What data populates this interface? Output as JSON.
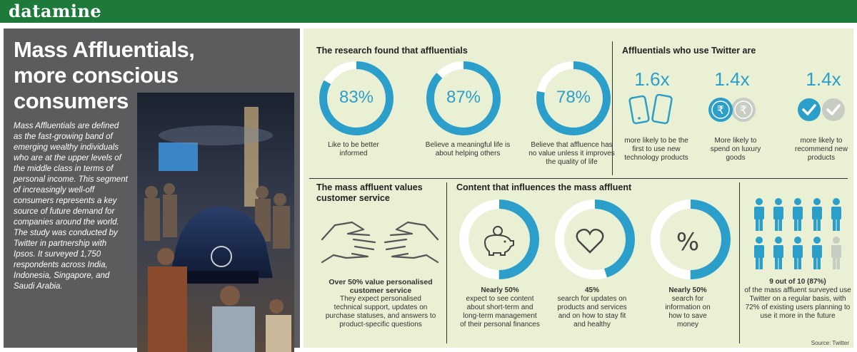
{
  "header": {
    "section_name": "datamine"
  },
  "left": {
    "title_line1": "Mass Affluentials,",
    "title_line2": "more conscious consumers",
    "description": "Mass Affluentials are defined as the fast-growing band of emerging wealthy individuals who are at the upper levels of the middle class in terms of personal income. This segment of increasingly well-off consumers represents a key source of future demand for companies around the world. The study was conducted by Twitter in partnership with Ipsos. It surveyed 1,750 respondents across India, Indonesia, Singapore, and Saudi Arabia."
  },
  "research": {
    "title": "The research found that affluentials",
    "items": [
      {
        "value": "83%",
        "fraction": 0.83,
        "caption_line1": "Like to be better",
        "caption_line2": "informed",
        "caption_line3": ""
      },
      {
        "value": "87%",
        "fraction": 0.87,
        "caption_line1": "Believe a meaningful life is",
        "caption_line2": "about helping others",
        "caption_line3": ""
      },
      {
        "value": "78%",
        "fraction": 0.78,
        "caption_line1": "Believe that affluence has",
        "caption_line2": "no value unless it improves",
        "caption_line3": "the quality of life"
      }
    ],
    "ring_color": "#2b9fca",
    "ring_track_color": "#ffffff"
  },
  "twitter": {
    "title": "Affluentials who use Twitter are",
    "items": [
      {
        "value": "1.6x",
        "icon": "smartphone-icon",
        "caption_line1": "more likely to be the",
        "caption_line2": "first to use new",
        "caption_line3": "technology products"
      },
      {
        "value": "1.4x",
        "icon": "rupee-coin-icon",
        "caption_line1": "More likely to",
        "caption_line2": "spend on luxury",
        "caption_line3": "goods"
      },
      {
        "value": "1.4x",
        "icon": "checkmark-icon",
        "caption_line1": "more likely to",
        "caption_line2": "recommend new",
        "caption_line3": "products"
      }
    ]
  },
  "service": {
    "title_line1": "The mass affluent values",
    "title_line2": "customer service",
    "icon": "hands-icon",
    "highlight_line1": "Over 50% value personalised",
    "highlight_line2": "customer service",
    "body_line1": "They expect personalised",
    "body_line2": "technical support, updates on",
    "body_line3": "purchase statuses, and answers to",
    "body_line4": "product-specific questions"
  },
  "content": {
    "title": "Content that influences the mass affluent",
    "items": [
      {
        "icon": "piggy-bank-icon",
        "fraction": 0.5,
        "highlight": "Nearly 50%",
        "line1": "expect to see content",
        "line2": "about short-term and",
        "line3": "long-term management",
        "line4": "of their personal finances"
      },
      {
        "icon": "heart-icon",
        "fraction": 0.45,
        "highlight": "45%",
        "line1": "search for updates on",
        "line2": "products and services",
        "line3": "and on how to stay fit",
        "line4": "and healthy"
      },
      {
        "icon": "percent-icon",
        "fraction": 0.5,
        "highlight": "Nearly 50%",
        "line1": "search for",
        "line2": "information on",
        "line3": "how to save",
        "line4": "money"
      }
    ]
  },
  "people": {
    "total": 10,
    "filled": 9,
    "highlight": "9 out of 10 (87%)",
    "line1": "of the mass affluent surveyed use",
    "line2": "Twitter on a regular basis, with",
    "line3": "72% of existing users planning to",
    "line4": "use it more in the future",
    "filled_color": "#2b9fca",
    "empty_color": "#c8cdc4"
  },
  "source": "Source: Twitter"
}
